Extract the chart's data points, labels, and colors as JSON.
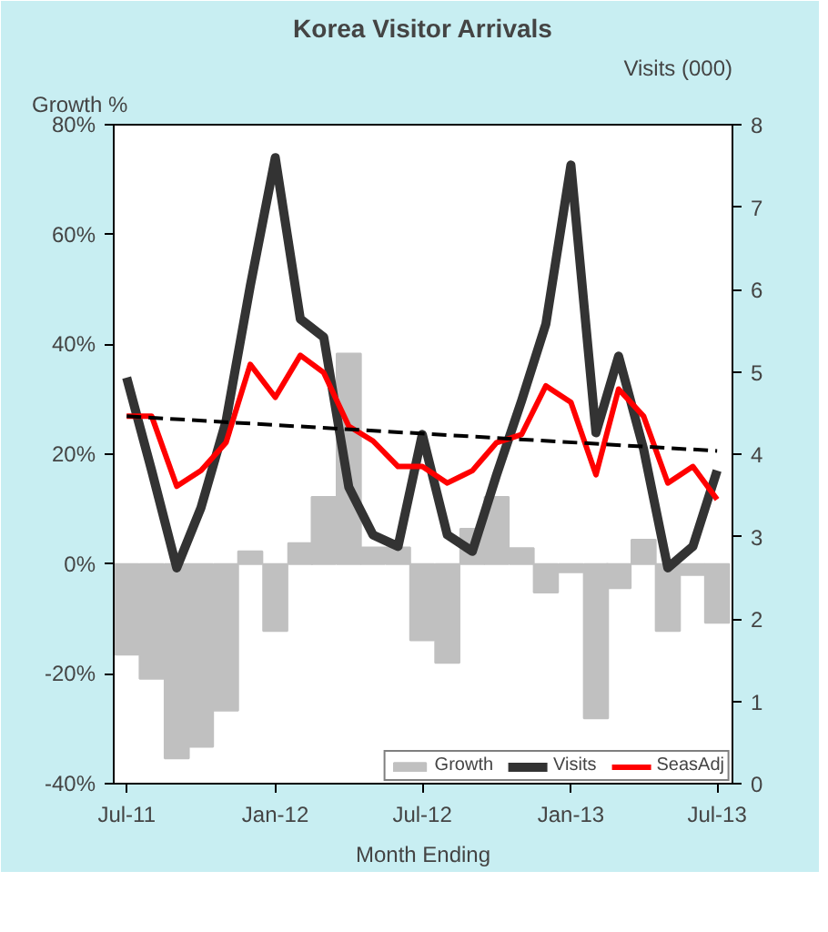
{
  "chart_data": {
    "type": "line",
    "title": "Korea Visitor Arrivals",
    "xlabel": "Month Ending",
    "ylabel": "Growth %",
    "y2label": "Visits (000)",
    "x": [
      "2011-07",
      "2011-08",
      "2011-09",
      "2011-10",
      "2011-11",
      "2011-12",
      "2012-01",
      "2012-02",
      "2012-03",
      "2012-04",
      "2012-05",
      "2012-06",
      "2012-07",
      "2012-08",
      "2012-09",
      "2012-10",
      "2012-11",
      "2012-12",
      "2013-01",
      "2013-02",
      "2013-03",
      "2013-04",
      "2013-05",
      "2013-06",
      "2013-07"
    ],
    "series": [
      {
        "name": "Growth",
        "type": "bar",
        "color": "#c0c0c0",
        "values": [
          -16.5,
          -20.9,
          -35.4,
          -33.3,
          -26.7,
          2.3,
          -12.2,
          3.8,
          12.2,
          38.3,
          3,
          3,
          -13.9,
          -18,
          6.4,
          12.2,
          2.9,
          -5.2,
          -1.5,
          -28.1,
          -4.4,
          4.4,
          -12.2,
          -2,
          -10.7
        ]
      },
      {
        "name": "Visits",
        "axis": "y2",
        "color": "#333333",
        "values": [
          4.93,
          3.8,
          2.62,
          3.35,
          4.4,
          6.04,
          7.6,
          5.64,
          5.42,
          3.6,
          3.02,
          2.88,
          4.24,
          3.02,
          2.82,
          3.75,
          4.65,
          5.58,
          7.51,
          4.26,
          5.19,
          4.06,
          2.62,
          2.88,
          3.8
        ]
      },
      {
        "name": "SeasAdj",
        "axis": "y2",
        "color": "#ff0000",
        "values": [
          4.46,
          4.46,
          3.61,
          3.8,
          4.14,
          5.09,
          4.69,
          5.2,
          4.99,
          4.34,
          4.16,
          3.85,
          3.85,
          3.65,
          3.8,
          4.14,
          4.24,
          4.83,
          4.63,
          3.75,
          4.79,
          4.46,
          3.65,
          3.85,
          3.45
        ]
      },
      {
        "axis": "y2",
        "color": "#000000",
        "line_style": "dashed",
        "x": [
          "2011-07",
          "2013-07"
        ],
        "values": [
          4.46,
          4.04
        ]
      }
    ],
    "xlim": [
      "2011-06-15",
      "2013-07-20"
    ],
    "xticks": [
      {
        "value": "2011-07",
        "label": "Jul-11"
      },
      {
        "value": "2012-01",
        "label": "Jan-12"
      },
      {
        "value": "2012-07",
        "label": "Jul-12"
      },
      {
        "value": "2013-01",
        "label": "Jan-13"
      },
      {
        "value": "2013-07",
        "label": "Jul-13"
      }
    ],
    "ylim": [
      -40,
      80
    ],
    "yticks": [
      {
        "value": -40,
        "label": "-40%"
      },
      {
        "value": -20,
        "label": "-20%"
      },
      {
        "value": 0,
        "label": "0%"
      },
      {
        "value": 20,
        "label": "20%"
      },
      {
        "value": 40,
        "label": "40%"
      },
      {
        "value": 60,
        "label": "60%"
      },
      {
        "value": 80,
        "label": "80%"
      }
    ],
    "y2lim": [
      0,
      8
    ],
    "y2ticks": [
      0,
      1,
      2,
      3,
      4,
      5,
      6,
      7,
      8
    ],
    "legend": "bottom",
    "grid": false
  }
}
